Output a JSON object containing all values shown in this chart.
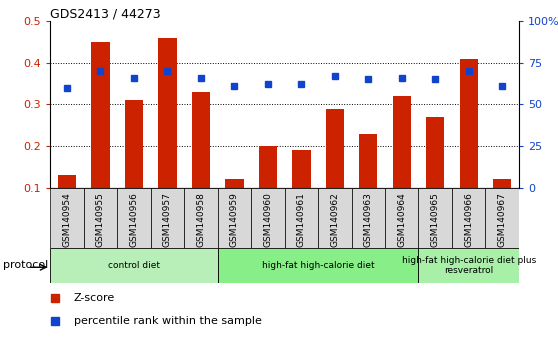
{
  "title": "GDS2413 / 44273",
  "samples": [
    "GSM140954",
    "GSM140955",
    "GSM140956",
    "GSM140957",
    "GSM140958",
    "GSM140959",
    "GSM140960",
    "GSM140961",
    "GSM140962",
    "GSM140963",
    "GSM140964",
    "GSM140965",
    "GSM140966",
    "GSM140967"
  ],
  "zscore": [
    0.13,
    0.45,
    0.31,
    0.46,
    0.33,
    0.12,
    0.2,
    0.19,
    0.29,
    0.23,
    0.32,
    0.27,
    0.41,
    0.12
  ],
  "percentile": [
    60,
    70,
    66,
    70,
    66,
    61,
    62,
    62,
    67,
    65,
    66,
    65,
    70,
    61
  ],
  "bar_color": "#cc2200",
  "dot_color": "#1144cc",
  "ylim_left": [
    0.1,
    0.5
  ],
  "ylim_right": [
    0,
    100
  ],
  "yticks_left": [
    0.1,
    0.2,
    0.3,
    0.4,
    0.5
  ],
  "ytick_labels_left": [
    "0.1",
    "0.2",
    "0.3",
    "0.4",
    "0.5"
  ],
  "yticks_right": [
    0,
    25,
    50,
    75,
    100
  ],
  "ytick_labels_right": [
    "0",
    "25",
    "50",
    "75",
    "100%"
  ],
  "group_edges": [
    0,
    5,
    11,
    14
  ],
  "group_labels": [
    "control diet",
    "high-fat high-calorie diet",
    "high-fat high-calorie diet plus\nresveratrol"
  ],
  "group_colors": [
    "#b8eeb8",
    "#88ee88",
    "#a8f0a8"
  ],
  "protocol_label": "protocol",
  "legend_zscore": "Z-score",
  "legend_percentile": "percentile rank within the sample",
  "bar_width": 0.55,
  "tick_cell_color": "#d8d8d8",
  "grid_yticks": [
    0.2,
    0.3,
    0.4
  ]
}
